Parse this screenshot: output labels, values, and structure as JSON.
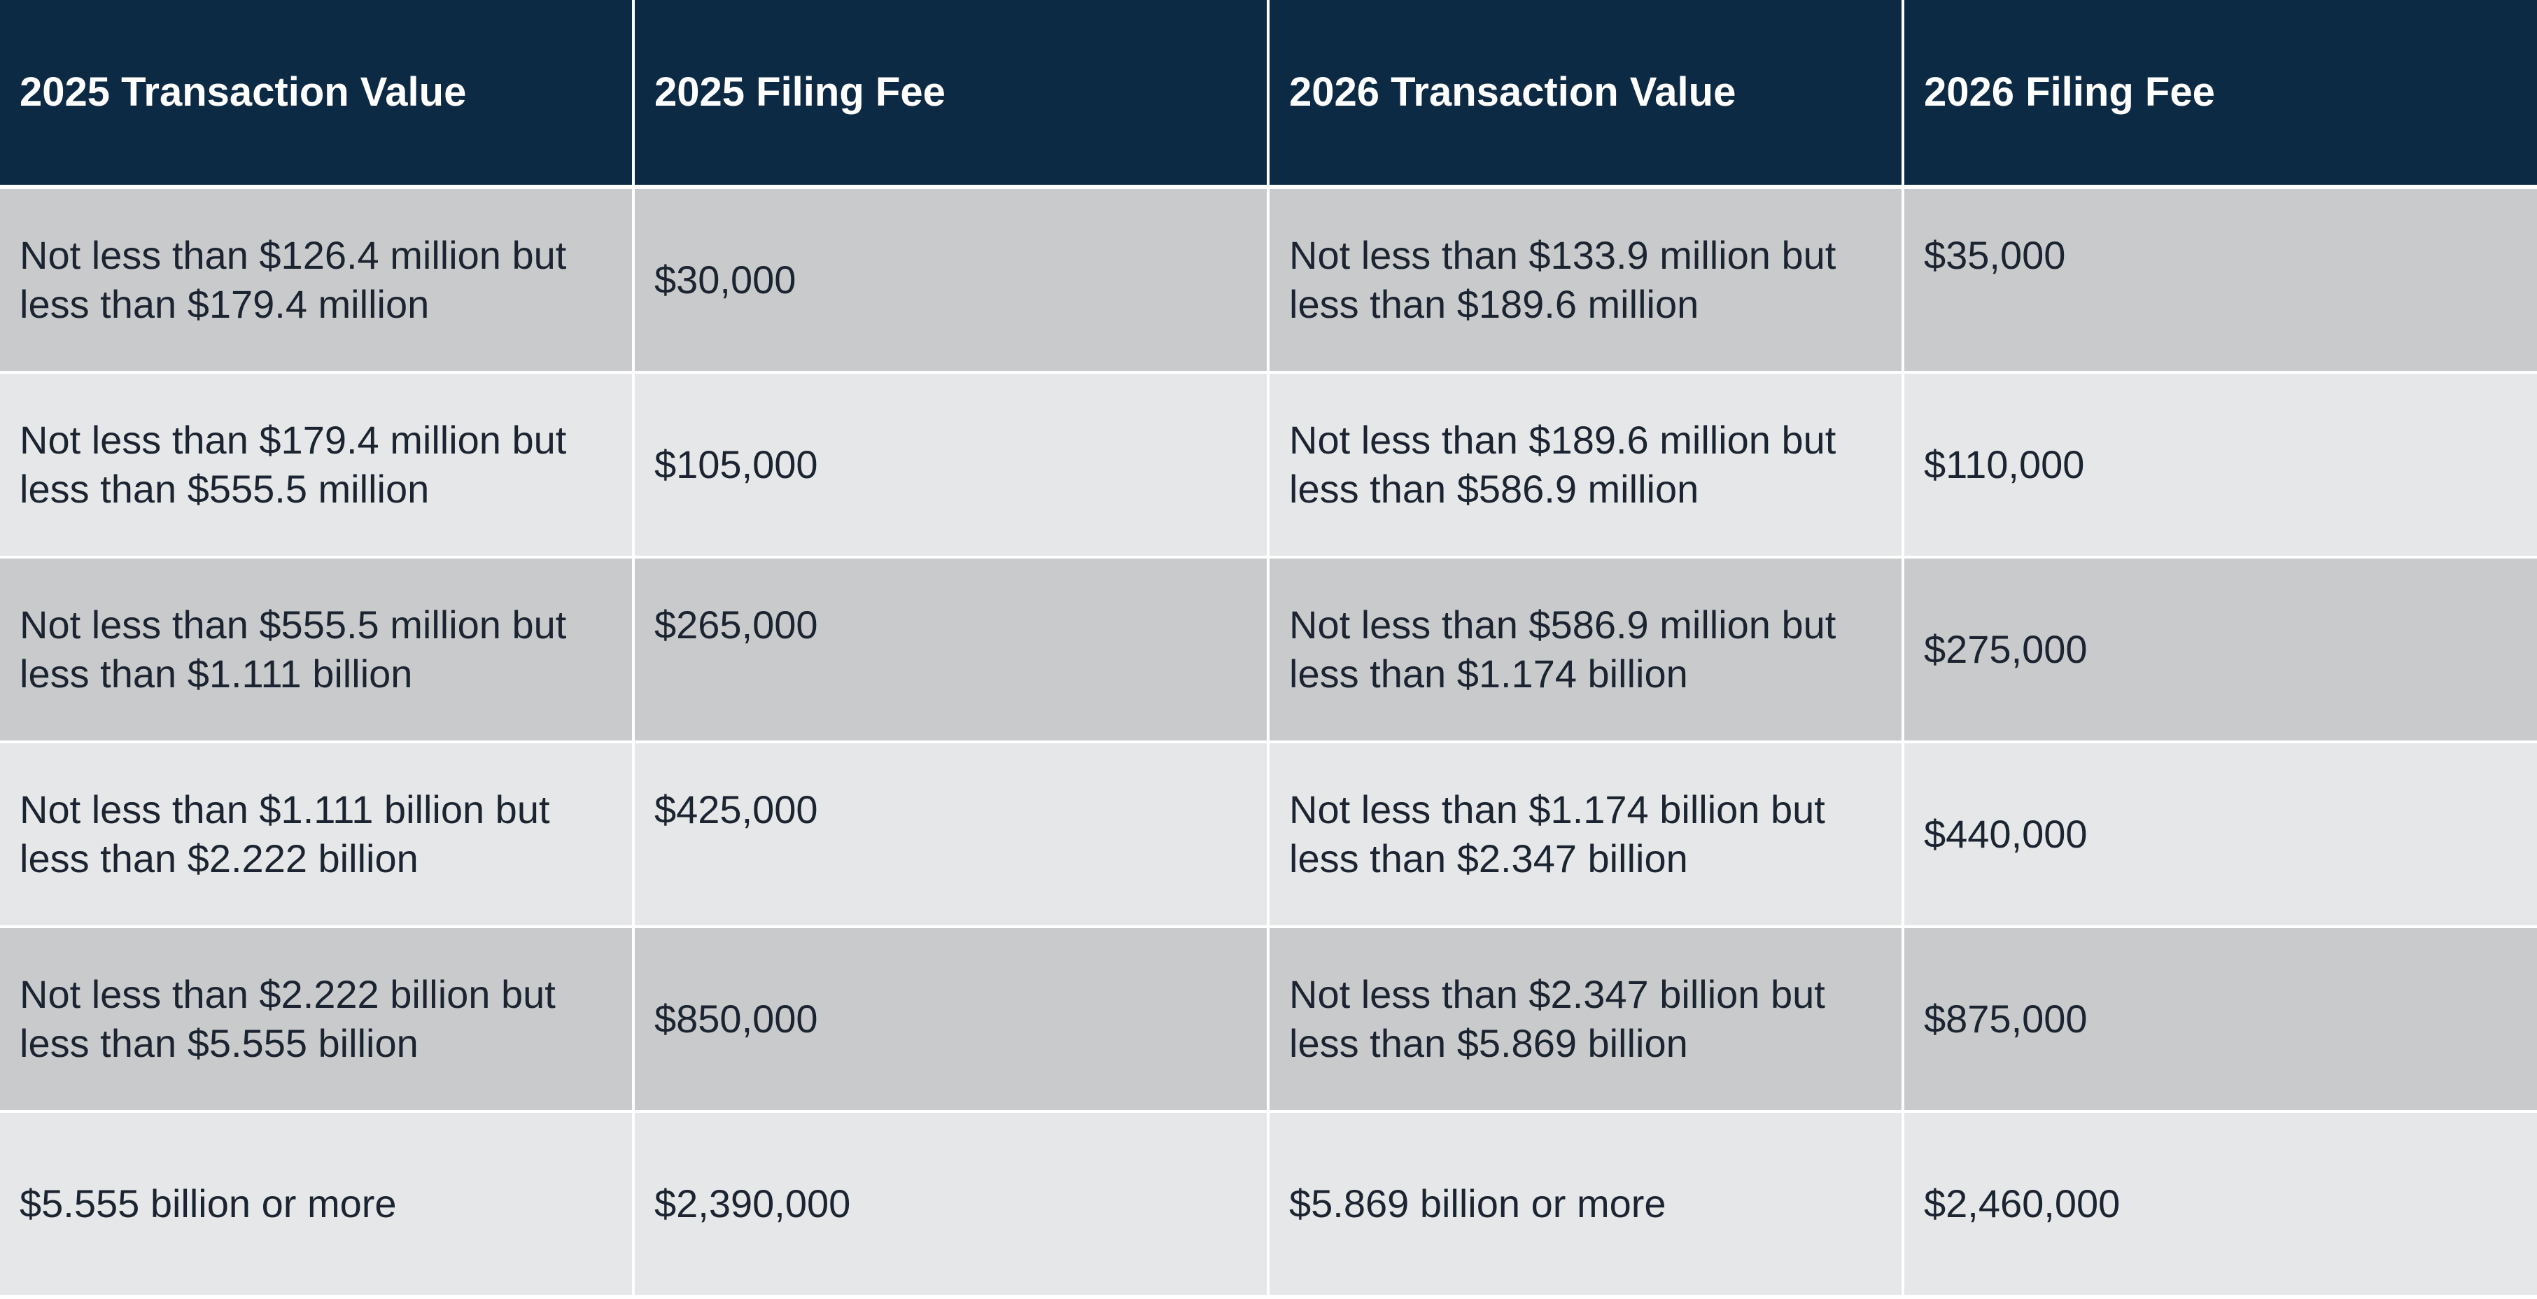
{
  "table": {
    "header": [
      "2025 Transaction Value",
      "2025 Filing Fee",
      "2026 Transaction Value",
      "2026 Filing Fee"
    ],
    "rows": [
      [
        "Not less than $126.4 million but less than $179.4 million",
        "$30,000",
        "Not less than $133.9 million but less than $189.6 million",
        "$35,000"
      ],
      [
        "Not less than $179.4 million but less than $555.5 million",
        "$105,000",
        "Not less than $189.6 million but less than $586.9 million",
        "$110,000"
      ],
      [
        "Not less than $555.5 million but less than $1.111 billion",
        "$265,000",
        "Not less than $586.9 million but less than $1.174 billion",
        "$275,000"
      ],
      [
        "Not less than $1.111 billion but less than $2.222 billion",
        "$425,000",
        "Not less than $1.174 billion but less than $2.347 billion",
        "$440,000"
      ],
      [
        "Not less than $2.222 billion but less than $5.555 billion",
        "$850,000",
        "Not less than $2.347 billion but less than $5.869 billion",
        "$875,000"
      ],
      [
        "$5.555 billion or more",
        "$2,390,000",
        "$5.869 billion or more",
        "$2,460,000"
      ]
    ]
  }
}
